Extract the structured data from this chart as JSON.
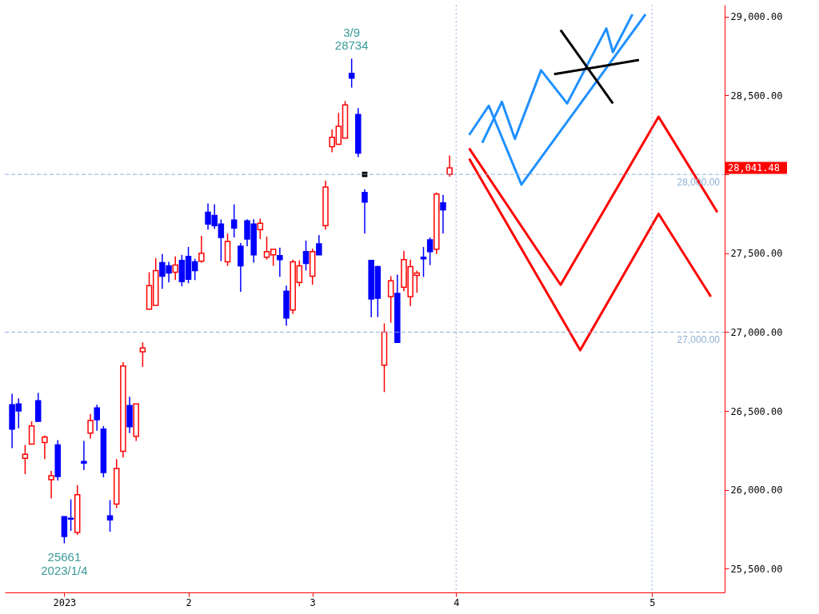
{
  "chart_data": {
    "type": "candlestick",
    "categories": [
      null,
      null,
      null,
      null,
      null,
      null,
      null,
      null,
      "2023",
      null,
      null,
      null,
      null,
      null,
      null,
      null,
      null,
      null,
      null,
      null,
      null,
      null,
      null,
      null,
      null,
      null,
      null,
      "2",
      null,
      null,
      null,
      null,
      null,
      null,
      null,
      null,
      null,
      null,
      null,
      null,
      null,
      null,
      null,
      null,
      null,
      null,
      "3",
      null,
      null,
      null,
      null,
      null,
      null,
      null,
      null,
      null,
      null,
      null,
      null,
      null,
      null,
      null,
      null,
      null,
      null,
      null,
      null,
      null,
      "4",
      null,
      null,
      null,
      null,
      null,
      null,
      null,
      null,
      null,
      null,
      null,
      null,
      null,
      null,
      null,
      null,
      null,
      null,
      null,
      null,
      null,
      null,
      null,
      null,
      null,
      null,
      null,
      null,
      null,
      "5",
      null,
      null,
      null,
      null,
      null,
      null,
      null,
      null,
      null,
      null
    ],
    "ohlc": [
      [
        26540,
        26610,
        26265,
        26385
      ],
      [
        26545,
        26580,
        26390,
        26500
      ],
      [
        26200,
        26285,
        26100,
        26225
      ],
      [
        26290,
        26435,
        26290,
        26405
      ],
      [
        26565,
        26615,
        26435,
        26435
      ],
      [
        26300,
        26345,
        26195,
        26335
      ],
      [
        26065,
        26120,
        25945,
        26090
      ],
      [
        26285,
        26315,
        26060,
        26085
      ],
      [
        25830,
        25830,
        25661,
        25705
      ],
      [
        25820,
        25940,
        25740,
        25815
      ],
      [
        25730,
        26030,
        25715,
        25970
      ],
      [
        26180,
        26310,
        26125,
        26170
      ],
      [
        26360,
        26480,
        26325,
        26440
      ],
      [
        26520,
        26540,
        26375,
        26445
      ],
      [
        26385,
        26405,
        26080,
        26110
      ],
      [
        25835,
        25935,
        25735,
        25810
      ],
      [
        25910,
        26195,
        25885,
        26135
      ],
      [
        26245,
        26810,
        26205,
        26785
      ],
      [
        26535,
        26590,
        26360,
        26400
      ],
      [
        26340,
        26545,
        26310,
        26545
      ],
      [
        26875,
        26935,
        26780,
        26900
      ],
      [
        27145,
        27380,
        27145,
        27295
      ],
      [
        27170,
        27470,
        27170,
        27390
      ],
      [
        27440,
        27495,
        27275,
        27355
      ],
      [
        27420,
        27445,
        27315,
        27375
      ],
      [
        27380,
        27480,
        27330,
        27425
      ],
      [
        27455,
        27490,
        27290,
        27320
      ],
      [
        27480,
        27540,
        27310,
        27335
      ],
      [
        27445,
        27465,
        27330,
        27390
      ],
      [
        27450,
        27610,
        27440,
        27500
      ],
      [
        27760,
        27815,
        27650,
        27685
      ],
      [
        27740,
        27810,
        27655,
        27675
      ],
      [
        27685,
        27715,
        27450,
        27600
      ],
      [
        27445,
        27625,
        27420,
        27575
      ],
      [
        27710,
        27810,
        27600,
        27660
      ],
      [
        27545,
        27565,
        27255,
        27420
      ],
      [
        27705,
        27715,
        27545,
        27590
      ],
      [
        27685,
        27715,
        27440,
        27490
      ],
      [
        27650,
        27720,
        27590,
        27690
      ],
      [
        27475,
        27605,
        27460,
        27510
      ],
      [
        27490,
        27525,
        27420,
        27525
      ],
      [
        27485,
        27535,
        27350,
        27460
      ],
      [
        27260,
        27295,
        27040,
        27090
      ],
      [
        27140,
        27460,
        27115,
        27445
      ],
      [
        27315,
        27455,
        27290,
        27420
      ],
      [
        27510,
        27580,
        27390,
        27435
      ],
      [
        27355,
        27530,
        27300,
        27510
      ],
      [
        27560,
        27615,
        27490,
        27490
      ],
      [
        27675,
        27960,
        27650,
        27920
      ],
      [
        28175,
        28285,
        28140,
        28235
      ],
      [
        28190,
        28390,
        28190,
        28305
      ],
      [
        28230,
        28465,
        28230,
        28440
      ],
      [
        28640,
        28734,
        28550,
        28610
      ],
      [
        28380,
        28420,
        28110,
        28135
      ],
      [
        27885,
        27905,
        27625,
        27825
      ],
      [
        27455,
        27455,
        27095,
        27210
      ],
      [
        27415,
        27420,
        27095,
        27215
      ],
      [
        26790,
        27055,
        26620,
        27000
      ],
      [
        27225,
        27355,
        27060,
        27325
      ],
      [
        27245,
        27365,
        26935,
        26935
      ],
      [
        27285,
        27515,
        27260,
        27460
      ],
      [
        27225,
        27460,
        27165,
        27415
      ],
      [
        27360,
        27390,
        27250,
        27375
      ],
      [
        27475,
        27540,
        27350,
        27465
      ],
      [
        27585,
        27600,
        27425,
        27510
      ],
      [
        27525,
        27885,
        27495,
        27875
      ],
      [
        27820,
        27870,
        27625,
        27775
      ],
      [
        28000,
        28120,
        27985,
        28041.48
      ],
      null,
      null,
      null,
      null,
      null,
      null,
      null,
      null,
      null,
      null,
      null,
      null,
      null,
      null,
      null,
      null,
      null,
      null,
      null,
      null,
      null,
      null,
      null,
      null,
      null,
      null,
      null,
      null,
      null,
      null,
      null,
      null,
      null,
      null,
      null,
      null,
      null,
      null,
      null,
      null,
      null
    ],
    "colors": [
      "#0000ff",
      "#0000ff",
      "#ff0000",
      "#ff0000",
      "#0000ff",
      "#ff0000",
      "#ff0000",
      "#0000ff",
      "#0000ff",
      "#0000ff",
      "#ff0000",
      "#0000ff",
      "#ff0000",
      "#0000ff",
      "#0000ff",
      "#0000ff",
      "#ff0000",
      "#ff0000",
      "#0000ff",
      "#ff0000",
      "#ff0000",
      "#ff0000",
      "#ff0000",
      "#0000ff",
      "#0000ff",
      "#ff0000",
      "#0000ff",
      "#0000ff",
      "#0000ff",
      "#ff0000",
      "#0000ff",
      "#0000ff",
      "#0000ff",
      "#ff0000",
      "#0000ff",
      "#0000ff",
      "#0000ff",
      "#0000ff",
      "#ff0000",
      "#ff0000",
      "#ff0000",
      "#0000ff",
      "#0000ff",
      "#ff0000",
      "#ff0000",
      "#0000ff",
      "#ff0000",
      "#0000ff",
      "#ff0000",
      "#ff0000",
      "#ff0000",
      "#ff0000",
      "#0000ff",
      "#0000ff",
      "#0000ff",
      "#0000ff",
      "#0000ff",
      "#ff0000",
      "#ff0000",
      "#0000ff",
      "#ff0000",
      "#ff0000",
      "#ff0000",
      "#0000ff",
      "#0000ff",
      "#ff0000",
      "#0000ff",
      "#ff0000",
      null,
      null,
      null,
      null,
      null,
      null,
      null,
      null,
      null,
      null,
      null,
      null,
      null,
      null,
      null,
      null,
      null,
      null,
      null,
      null,
      null,
      null,
      null,
      null,
      null,
      null,
      null,
      null,
      null,
      null,
      null,
      null,
      null,
      null,
      null,
      null,
      null,
      null,
      null,
      null,
      null
    ],
    "series": [
      {
        "type": "line",
        "color": "#ff0000",
        "values": [
          null,
          null,
          null,
          null,
          null,
          null,
          null,
          null,
          null,
          null,
          null,
          null,
          null,
          null,
          null,
          null,
          null,
          null,
          null,
          null,
          null,
          null,
          null,
          null,
          null,
          null,
          null,
          null,
          null,
          null,
          null,
          null,
          null,
          null,
          null,
          null,
          null,
          null,
          null,
          null,
          null,
          null,
          null,
          null,
          null,
          null,
          null,
          null,
          null,
          null,
          null,
          null,
          null,
          null,
          null,
          null,
          null,
          null,
          null,
          null,
          null,
          null,
          null,
          null,
          null,
          null,
          null,
          null,
          null,
          null,
          28165,
          null,
          null,
          null,
          null,
          null,
          null,
          null,
          null,
          null,
          null,
          null,
          null,
          null,
          27300,
          null,
          null,
          null,
          null,
          null,
          null,
          null,
          null,
          null,
          null,
          null,
          null,
          null,
          null,
          28365,
          null,
          null,
          null,
          null,
          null,
          null,
          null,
          null,
          27760
        ]
      },
      {
        "type": "line",
        "color": "#ff0000",
        "values": [
          null,
          null,
          null,
          null,
          null,
          null,
          null,
          null,
          null,
          null,
          null,
          null,
          null,
          null,
          null,
          null,
          null,
          null,
          null,
          null,
          null,
          null,
          null,
          null,
          null,
          null,
          null,
          null,
          null,
          null,
          null,
          null,
          null,
          null,
          null,
          null,
          null,
          null,
          null,
          null,
          null,
          null,
          null,
          null,
          null,
          null,
          null,
          null,
          null,
          null,
          null,
          null,
          null,
          null,
          null,
          null,
          null,
          null,
          null,
          null,
          null,
          null,
          null,
          null,
          null,
          null,
          null,
          null,
          null,
          null,
          28100,
          null,
          null,
          null,
          null,
          null,
          null,
          null,
          null,
          null,
          null,
          null,
          null,
          null,
          null,
          null,
          null,
          26885,
          null,
          null,
          null,
          null,
          null,
          null,
          null,
          null,
          null,
          null,
          null,
          27750,
          null,
          null,
          null,
          null,
          null,
          null,
          null,
          27225,
          null
        ]
      },
      {
        "type": "line",
        "color": "#1e90ff",
        "values": [
          null,
          null,
          null,
          null,
          null,
          null,
          null,
          null,
          null,
          null,
          null,
          null,
          null,
          null,
          null,
          null,
          null,
          null,
          null,
          null,
          null,
          null,
          null,
          null,
          null,
          null,
          null,
          null,
          null,
          null,
          null,
          null,
          null,
          null,
          null,
          null,
          null,
          null,
          null,
          null,
          null,
          null,
          null,
          null,
          null,
          null,
          null,
          null,
          null,
          null,
          null,
          null,
          null,
          null,
          null,
          null,
          null,
          null,
          null,
          null,
          null,
          null,
          null,
          null,
          null,
          null,
          null,
          null,
          null,
          null,
          28250,
          null,
          null,
          28435,
          null,
          null,
          null,
          null,
          27935,
          null,
          null,
          null,
          null,
          null,
          null,
          null,
          null,
          null,
          null,
          null,
          null,
          null,
          null,
          null,
          null,
          null,
          null,
          29015,
          null,
          null,
          null,
          null,
          null,
          null,
          null,
          null,
          null,
          null,
          null
        ]
      },
      {
        "type": "line",
        "color": "#1e90ff",
        "values": [
          null,
          null,
          null,
          null,
          null,
          null,
          null,
          null,
          null,
          null,
          null,
          null,
          null,
          null,
          null,
          null,
          null,
          null,
          null,
          null,
          null,
          null,
          null,
          null,
          null,
          null,
          null,
          null,
          null,
          null,
          null,
          null,
          null,
          null,
          null,
          null,
          null,
          null,
          null,
          null,
          null,
          null,
          null,
          null,
          null,
          null,
          null,
          null,
          null,
          null,
          null,
          null,
          null,
          null,
          null,
          null,
          null,
          null,
          null,
          null,
          null,
          null,
          null,
          null,
          null,
          null,
          null,
          null,
          null,
          null,
          null,
          null,
          28200,
          null,
          null,
          28460,
          null,
          28225,
          null,
          null,
          null,
          28660,
          null,
          null,
          null,
          28450,
          null,
          null,
          null,
          null,
          null,
          28925,
          28775,
          null,
          null,
          29015,
          null,
          null,
          null,
          null,
          null,
          null,
          null,
          null,
          null,
          null,
          null,
          null,
          null
        ]
      },
      {
        "type": "line",
        "color": "#000000",
        "values": [
          null,
          null,
          null,
          null,
          null,
          null,
          null,
          null,
          null,
          null,
          null,
          null,
          null,
          null,
          null,
          null,
          null,
          null,
          null,
          null,
          null,
          null,
          null,
          null,
          null,
          null,
          null,
          null,
          null,
          null,
          null,
          null,
          null,
          null,
          null,
          null,
          null,
          null,
          null,
          null,
          null,
          null,
          null,
          null,
          null,
          null,
          null,
          null,
          null,
          null,
          null,
          null,
          null,
          null,
          null,
          null,
          null,
          null,
          null,
          null,
          null,
          null,
          null,
          null,
          null,
          null,
          null,
          null,
          null,
          null,
          null,
          null,
          null,
          null,
          null,
          null,
          null,
          null,
          null,
          null,
          null,
          null,
          null,
          null,
          28915,
          null,
          null,
          null,
          null,
          null,
          null,
          null,
          28450,
          null,
          null,
          null,
          null,
          null,
          null,
          null,
          null,
          null,
          null,
          null,
          null,
          null,
          null,
          null,
          null
        ]
      },
      {
        "type": "line",
        "color": "#000000",
        "values": [
          null,
          null,
          null,
          null,
          null,
          null,
          null,
          null,
          null,
          null,
          null,
          null,
          null,
          null,
          null,
          null,
          null,
          null,
          null,
          null,
          null,
          null,
          null,
          null,
          null,
          null,
          null,
          null,
          null,
          null,
          null,
          null,
          null,
          null,
          null,
          null,
          null,
          null,
          null,
          null,
          null,
          null,
          null,
          null,
          null,
          null,
          null,
          null,
          null,
          null,
          null,
          null,
          null,
          null,
          null,
          null,
          null,
          null,
          null,
          null,
          null,
          null,
          null,
          null,
          null,
          null,
          null,
          null,
          null,
          null,
          null,
          null,
          null,
          null,
          null,
          null,
          null,
          null,
          null,
          null,
          null,
          null,
          null,
          28635,
          null,
          null,
          null,
          null,
          null,
          null,
          null,
          null,
          null,
          null,
          null,
          null,
          28725,
          null,
          null,
          null,
          null,
          null,
          null,
          null,
          null,
          null,
          null,
          null,
          null
        ]
      },
      {
        "type": "scatter",
        "color": "#000000",
        "marker": "square",
        "values": [
          null,
          null,
          null,
          null,
          null,
          null,
          null,
          null,
          null,
          null,
          null,
          null,
          null,
          null,
          null,
          null,
          null,
          null,
          null,
          null,
          null,
          null,
          null,
          null,
          null,
          null,
          null,
          null,
          null,
          null,
          null,
          null,
          null,
          null,
          null,
          null,
          null,
          null,
          null,
          null,
          null,
          null,
          null,
          null,
          null,
          null,
          null,
          null,
          null,
          null,
          null,
          null,
          null,
          null,
          28000,
          null,
          null,
          null,
          null,
          null,
          null,
          null,
          null,
          null,
          null,
          null,
          null,
          null,
          null,
          null,
          null,
          null,
          null,
          null,
          null,
          null,
          null,
          null,
          null,
          null,
          null,
          null,
          null,
          null,
          null,
          null,
          null,
          null,
          null,
          null,
          null,
          null,
          null,
          null,
          null,
          null,
          null,
          null,
          null,
          null,
          null,
          null,
          null,
          null,
          null,
          null,
          null,
          null,
          null
        ]
      }
    ],
    "ylim": [
      25350,
      29075
    ],
    "yticks": [
      {
        "value": 25500,
        "label": "25,500.00"
      },
      {
        "value": 26000,
        "label": "26,000.00"
      },
      {
        "value": 26500,
        "label": "26,500.00"
      },
      {
        "value": 27000,
        "label": "27,000.00"
      },
      {
        "value": 27500,
        "label": "27,500.00"
      },
      {
        "value": 28000,
        "label": null
      },
      {
        "value": 28500,
        "label": "28,500.00"
      },
      {
        "value": 29000,
        "label": "29,000.00"
      }
    ],
    "ref_lines": [
      {
        "axis": "y",
        "value": 28000,
        "label": "28,000.00",
        "color": "#8fb0d6",
        "line_style": "dashed"
      },
      {
        "axis": "y",
        "value": 27000,
        "label": "27,000.00",
        "color": "#8fb0d6",
        "line_style": "dashed"
      },
      {
        "axis": "x",
        "value": "4",
        "color": "#8fb0d6",
        "line_style": "dotted"
      },
      {
        "axis": "x",
        "value": "5",
        "color": "#8fb0d6",
        "line_style": "dotted"
      }
    ],
    "annotations": [
      {
        "text": "3/9",
        "y": 28734
      },
      {
        "text": "28734",
        "y": 28734
      },
      {
        "text": "25661",
        "y": 25661
      },
      {
        "text": "2023/1/4",
        "y": 25661
      },
      "28,041.48"
    ],
    "grid": false
  }
}
